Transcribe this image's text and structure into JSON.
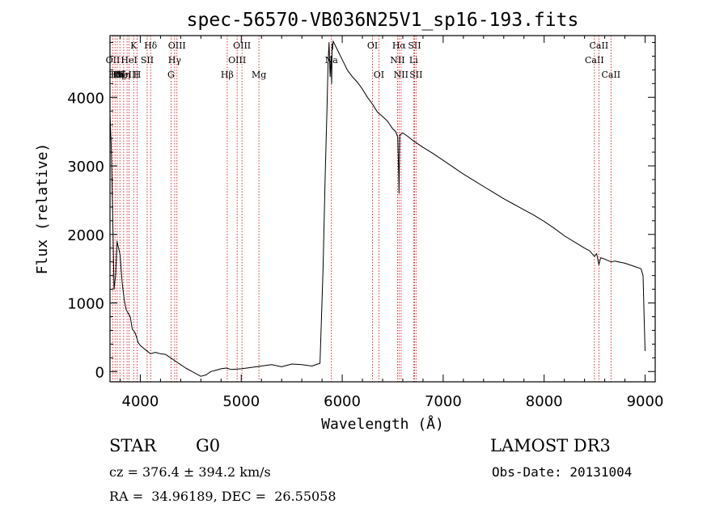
{
  "chart_data": {
    "type": "line",
    "title": "spec-56570-VB036N25V1_sp16-193.fits",
    "xlabel": "Wavelength (Å)",
    "ylabel": "Flux (relative)",
    "xlim": [
      3700,
      9100
    ],
    "ylim": [
      -150,
      4900
    ],
    "xticks": [
      4000,
      5000,
      6000,
      7000,
      8000,
      9000
    ],
    "yticks": [
      0,
      1000,
      2000,
      3000,
      4000
    ],
    "grid": false,
    "line_color": "#000000",
    "marker_color": "#cc0000",
    "series": [
      {
        "name": "flux",
        "x": [
          3700,
          3712,
          3725,
          3740,
          3755,
          3770,
          3785,
          3800,
          3820,
          3840,
          3860,
          3880,
          3900,
          3920,
          3950,
          3980,
          4000,
          4050,
          4100,
          4150,
          4200,
          4250,
          4300,
          4350,
          4400,
          4450,
          4500,
          4550,
          4600,
          4650,
          4700,
          4750,
          4800,
          4850,
          4900,
          5000,
          5100,
          5200,
          5300,
          5400,
          5500,
          5600,
          5700,
          5780,
          5810,
          5830,
          5850,
          5860,
          5870,
          5880,
          5890,
          5895,
          5900,
          5905,
          5910,
          5950,
          6000,
          6050,
          6100,
          6150,
          6200,
          6250,
          6300,
          6350,
          6400,
          6450,
          6500,
          6530,
          6550,
          6560,
          6563,
          6566,
          6570,
          6580,
          6600,
          6650,
          6700,
          6750,
          6800,
          6900,
          7000,
          7100,
          7200,
          7300,
          7400,
          7500,
          7600,
          7700,
          7800,
          7900,
          8000,
          8100,
          8200,
          8300,
          8400,
          8450,
          8498,
          8520,
          8542,
          8560,
          8600,
          8662,
          8700,
          8800,
          8900,
          8960,
          8980,
          8990,
          9000
        ],
        "y": [
          3750,
          3300,
          2400,
          1200,
          1400,
          1900,
          1800,
          1700,
          1300,
          1050,
          900,
          850,
          800,
          620,
          560,
          420,
          380,
          320,
          260,
          280,
          260,
          250,
          200,
          150,
          100,
          50,
          10,
          -30,
          -70,
          -50,
          0,
          20,
          40,
          50,
          30,
          40,
          60,
          80,
          100,
          70,
          110,
          100,
          80,
          120,
          1500,
          2800,
          3900,
          4500,
          4800,
          4300,
          4600,
          4200,
          4780,
          4700,
          4820,
          4700,
          4550,
          4400,
          4300,
          4220,
          4120,
          4000,
          3900,
          3780,
          3720,
          3650,
          3540,
          3500,
          3420,
          2850,
          2600,
          3000,
          3450,
          3460,
          3480,
          3430,
          3370,
          3320,
          3270,
          3180,
          3080,
          2980,
          2880,
          2790,
          2700,
          2610,
          2520,
          2440,
          2360,
          2280,
          2190,
          2090,
          1980,
          1890,
          1800,
          1760,
          1680,
          1720,
          1560,
          1660,
          1640,
          1600,
          1610,
          1580,
          1530,
          1500,
          1400,
          800,
          300
        ]
      }
    ],
    "line_markers": [
      {
        "x": 3728,
        "label": "OII",
        "row": 1
      },
      {
        "x": 3750,
        "label": "Hθ",
        "row": 2
      },
      {
        "x": 3771,
        "label": "Hη",
        "row": 2
      },
      {
        "x": 3798,
        "label": "Hζ",
        "row": 2
      },
      {
        "x": 3835,
        "label": "Hη",
        "row": 2
      },
      {
        "x": 3869,
        "label": "NeIII",
        "row": 2
      },
      {
        "x": 3889,
        "label": "HeI",
        "row": 1
      },
      {
        "x": 3934,
        "label": "K",
        "row": 0
      },
      {
        "x": 3969,
        "label": "H",
        "row": 2
      },
      {
        "x": 4068,
        "label": "SII",
        "row": 1
      },
      {
        "x": 4102,
        "label": "Hδ",
        "row": 0
      },
      {
        "x": 4304,
        "label": "G",
        "row": 2
      },
      {
        "x": 4340,
        "label": "Hγ",
        "row": 1
      },
      {
        "x": 4363,
        "label": "OIII",
        "row": 0
      },
      {
        "x": 4861,
        "label": "Hβ",
        "row": 2
      },
      {
        "x": 4959,
        "label": "OIII",
        "row": 1
      },
      {
        "x": 5007,
        "label": "OIII",
        "row": 0
      },
      {
        "x": 5175,
        "label": "Mg",
        "row": 2
      },
      {
        "x": 5893,
        "label": "Na",
        "row": 1
      },
      {
        "x": 6300,
        "label": "OI",
        "row": 0
      },
      {
        "x": 6363,
        "label": "OI",
        "row": 2
      },
      {
        "x": 6548,
        "label": "NII",
        "row": 1
      },
      {
        "x": 6563,
        "label": "Hα",
        "row": 0
      },
      {
        "x": 6583,
        "label": "NII",
        "row": 2
      },
      {
        "x": 6707,
        "label": "Li",
        "row": 1
      },
      {
        "x": 6716,
        "label": "SII",
        "row": 0
      },
      {
        "x": 6731,
        "label": "SII",
        "row": 2
      },
      {
        "x": 8498,
        "label": "CaII",
        "row": 1
      },
      {
        "x": 8542,
        "label": "CaII",
        "row": 0
      },
      {
        "x": 8662,
        "label": "CaII",
        "row": 2
      }
    ]
  },
  "info": {
    "class_label": "STAR",
    "subclass": "G0",
    "survey": "LAMOST DR3",
    "cz": "cz = 376.4 ± 394.2 km/s",
    "obs_date": "Obs-Date: 20131004",
    "coords": "RA =  34.96189, DEC =  26.55058"
  }
}
